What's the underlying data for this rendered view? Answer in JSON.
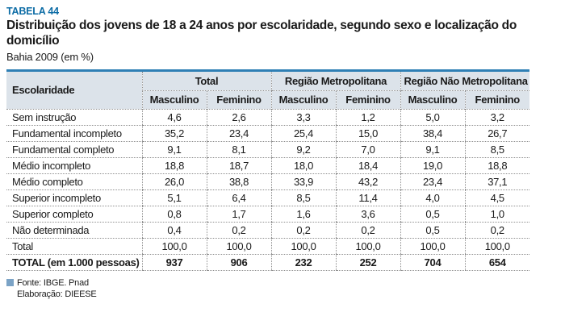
{
  "doc": {
    "table_label": "TABELA 44",
    "title": "Distribuição dos jovens de 18 a 24 anos por escolaridade, segundo sexo e localização do domicílio",
    "subtitle": "Bahia 2009 (em %)"
  },
  "header": {
    "row_label": "Escolaridade",
    "groups": [
      {
        "label": "Total",
        "columns": [
          "Masculino",
          "Feminino"
        ]
      },
      {
        "label": "Região Metropolitana",
        "columns": [
          "Masculino",
          "Feminino"
        ]
      },
      {
        "label": "Região Não Metropolitana",
        "columns": [
          "Masculino",
          "Feminino"
        ]
      }
    ]
  },
  "rows": [
    {
      "label": "Sem instrução",
      "values": [
        "4,6",
        "2,6",
        "3,3",
        "1,2",
        "5,0",
        "3,2"
      ]
    },
    {
      "label": "Fundamental incompleto",
      "values": [
        "35,2",
        "23,4",
        "25,4",
        "15,0",
        "38,4",
        "26,7"
      ]
    },
    {
      "label": "Fundamental completo",
      "values": [
        "9,1",
        "8,1",
        "9,2",
        "7,0",
        "9,1",
        "8,5"
      ]
    },
    {
      "label": "Médio incompleto",
      "values": [
        "18,8",
        "18,7",
        "18,0",
        "18,4",
        "19,0",
        "18,8"
      ]
    },
    {
      "label": "Médio completo",
      "values": [
        "26,0",
        "38,8",
        "33,9",
        "43,2",
        "23,4",
        "37,1"
      ]
    },
    {
      "label": "Superior incompleto",
      "values": [
        "5,1",
        "6,4",
        "8,5",
        "11,4",
        "4,0",
        "4,5"
      ]
    },
    {
      "label": "Superior completo",
      "values": [
        "0,8",
        "1,7",
        "1,6",
        "3,6",
        "0,5",
        "1,0"
      ]
    },
    {
      "label": "Não determinada",
      "values": [
        "0,4",
        "0,2",
        "0,2",
        "0,2",
        "0,5",
        "0,2"
      ]
    },
    {
      "label": "Total",
      "values": [
        "100,0",
        "100,0",
        "100,0",
        "100,0",
        "100,0",
        "100,0"
      ]
    }
  ],
  "total_row": {
    "label": "TOTAL (em 1.000 pessoas)",
    "values": [
      "937",
      "906",
      "232",
      "252",
      "704",
      "654"
    ]
  },
  "footer": {
    "source": "Fonte: IBGE. Pnad",
    "elaboration": "Elaboração: DIEESE"
  },
  "colors": {
    "accent_blue": "#0e6da6",
    "table_top_line": "#2e7fb5",
    "header_bg": "#dce3ea",
    "legend_square": "#7ba3c6"
  }
}
